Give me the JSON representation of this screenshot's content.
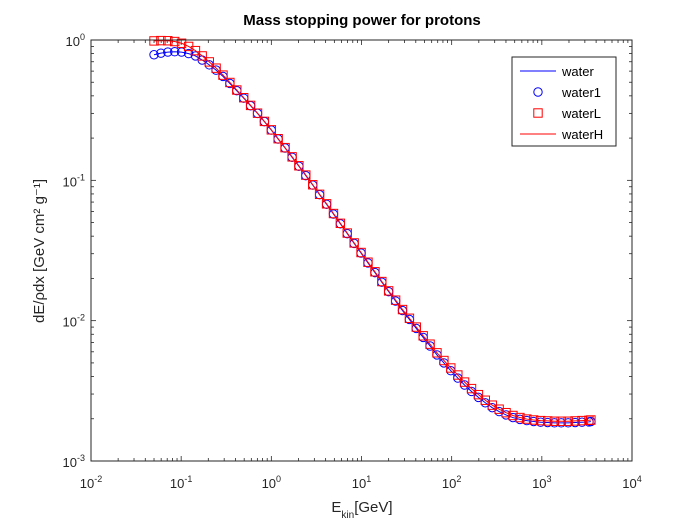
{
  "chart_data": {
    "type": "line",
    "title": "Mass stopping power for protons",
    "xlabel": {
      "main": "E",
      "sub": "kin",
      "rest": "[GeV]"
    },
    "ylabel": "dE/ρdx [GeV cm² g⁻¹]",
    "xscale": "log",
    "yscale": "log",
    "xlim": [
      0.01,
      10000
    ],
    "ylim": [
      0.001,
      1
    ],
    "x_ticks": [
      {
        "base": "10",
        "exp": "-2"
      },
      {
        "base": "10",
        "exp": "-1"
      },
      {
        "base": "10",
        "exp": "0"
      },
      {
        "base": "10",
        "exp": "1"
      },
      {
        "base": "10",
        "exp": "2"
      },
      {
        "base": "10",
        "exp": "3"
      },
      {
        "base": "10",
        "exp": "4"
      }
    ],
    "y_ticks": [
      {
        "base": "10",
        "exp": "-3"
      },
      {
        "base": "10",
        "exp": "-2"
      },
      {
        "base": "10",
        "exp": "-1"
      },
      {
        "base": "10",
        "exp": "0"
      }
    ],
    "grid": false,
    "legend_position": "top-right",
    "series": [
      {
        "name": "water",
        "style": "line",
        "color": "#0000ff",
        "x": [
          0.05,
          0.0596,
          0.0711,
          0.0848,
          0.101,
          0.121,
          0.144,
          0.171,
          0.205,
          0.244,
          0.291,
          0.347,
          0.414,
          0.494,
          0.589,
          0.703,
          0.838,
          1.0,
          1.19,
          1.42,
          1.7,
          2.02,
          2.41,
          2.88,
          3.43,
          4.1,
          4.89,
          5.83,
          6.95,
          8.29,
          9.89,
          11.8,
          14.1,
          16.8,
          20.0,
          23.9,
          28.5,
          34.0,
          40.5,
          48.3,
          57.6,
          68.7,
          82.0,
          97.8,
          117,
          139,
          166,
          198,
          236,
          282,
          336,
          401,
          478,
          571,
          681,
          812,
          969,
          1160,
          1380,
          1640,
          1960,
          2340,
          2790,
          3330,
          3500
        ],
        "y": [
          0.785,
          0.806,
          0.82,
          0.825,
          0.82,
          0.8,
          0.77,
          0.72,
          0.665,
          0.61,
          0.55,
          0.49,
          0.435,
          0.385,
          0.34,
          0.3,
          0.262,
          0.228,
          0.197,
          0.17,
          0.146,
          0.126,
          0.108,
          0.0925,
          0.079,
          0.0675,
          0.0575,
          0.049,
          0.0417,
          0.0355,
          0.0303,
          0.0258,
          0.022,
          0.0188,
          0.0161,
          0.0138,
          0.0118,
          0.0102,
          0.0088,
          0.0076,
          0.0066,
          0.0057,
          0.005,
          0.0044,
          0.0039,
          0.00348,
          0.00313,
          0.00284,
          0.0026,
          0.0024,
          0.00225,
          0.00213,
          0.00204,
          0.00198,
          0.00194,
          0.00191,
          0.00189,
          0.00188,
          0.00187,
          0.00187,
          0.00187,
          0.00188,
          0.00189,
          0.0019,
          0.00191
        ]
      },
      {
        "name": "water1",
        "style": "circle",
        "color": "#0000ff",
        "x": [
          0.05,
          0.0596,
          0.0711,
          0.0848,
          0.101,
          0.121,
          0.144,
          0.171,
          0.205,
          0.244,
          0.291,
          0.347,
          0.414,
          0.494,
          0.589,
          0.703,
          0.838,
          1.0,
          1.19,
          1.42,
          1.7,
          2.02,
          2.41,
          2.88,
          3.43,
          4.1,
          4.89,
          5.83,
          6.95,
          8.29,
          9.89,
          11.8,
          14.1,
          16.8,
          20.0,
          23.9,
          28.5,
          34.0,
          40.5,
          48.3,
          57.6,
          68.7,
          82.0,
          97.8,
          117,
          139,
          166,
          198,
          236,
          282,
          336,
          401,
          478,
          571,
          681,
          812,
          969,
          1160,
          1380,
          1640,
          1960,
          2340,
          2790,
          3330,
          3500
        ],
        "y": [
          0.785,
          0.806,
          0.82,
          0.825,
          0.82,
          0.8,
          0.77,
          0.72,
          0.665,
          0.61,
          0.55,
          0.49,
          0.435,
          0.385,
          0.34,
          0.3,
          0.262,
          0.228,
          0.197,
          0.17,
          0.146,
          0.126,
          0.108,
          0.0925,
          0.079,
          0.0675,
          0.0575,
          0.049,
          0.0417,
          0.0355,
          0.0303,
          0.0258,
          0.022,
          0.0188,
          0.0161,
          0.0138,
          0.0118,
          0.0102,
          0.0088,
          0.0076,
          0.0066,
          0.0057,
          0.005,
          0.0044,
          0.0039,
          0.00348,
          0.00313,
          0.00284,
          0.0026,
          0.0024,
          0.00225,
          0.00213,
          0.00204,
          0.00198,
          0.00194,
          0.00191,
          0.00189,
          0.00188,
          0.00187,
          0.00187,
          0.00187,
          0.00188,
          0.00189,
          0.0019,
          0.00191
        ]
      },
      {
        "name": "waterL",
        "style": "square",
        "color": "#ff0000",
        "x": [
          0.05,
          0.0596,
          0.0711,
          0.0848,
          0.101,
          0.121,
          0.144,
          0.171,
          0.205,
          0.244,
          0.291,
          0.347,
          0.414,
          0.494,
          0.589,
          0.703,
          0.838,
          1.0,
          1.19,
          1.42,
          1.7,
          2.02,
          2.41,
          2.88,
          3.43,
          4.1,
          4.89,
          5.83,
          6.95,
          8.29,
          9.89,
          11.8,
          14.1,
          16.8,
          20.0,
          23.9,
          28.5,
          34.0,
          40.5,
          48.3,
          57.6,
          68.7,
          82.0,
          97.8,
          117,
          139,
          166,
          198,
          236,
          282,
          336,
          401,
          478,
          571,
          681,
          812,
          969,
          1160,
          1380,
          1640,
          1960,
          2340,
          2790,
          3330,
          3500
        ],
        "y": [
          0.985,
          0.99,
          0.988,
          0.975,
          0.948,
          0.9,
          0.84,
          0.77,
          0.698,
          0.63,
          0.562,
          0.498,
          0.44,
          0.388,
          0.342,
          0.301,
          0.263,
          0.229,
          0.198,
          0.171,
          0.147,
          0.127,
          0.109,
          0.093,
          0.0795,
          0.068,
          0.058,
          0.0494,
          0.0421,
          0.0358,
          0.0306,
          0.0261,
          0.0223,
          0.019,
          0.0163,
          0.014,
          0.012,
          0.0104,
          0.009,
          0.0078,
          0.0068,
          0.0059,
          0.0052,
          0.0046,
          0.0041,
          0.00365,
          0.00328,
          0.00297,
          0.00271,
          0.0025,
          0.00234,
          0.00221,
          0.00211,
          0.00204,
          0.00199,
          0.00196,
          0.00194,
          0.00193,
          0.00192,
          0.00192,
          0.00192,
          0.00193,
          0.00194,
          0.00195,
          0.00196
        ]
      },
      {
        "name": "waterH",
        "style": "line",
        "color": "#ff0000",
        "x": [
          0.05,
          0.0596,
          0.0711,
          0.0848,
          0.101,
          0.121,
          0.144,
          0.171,
          0.205,
          0.244,
          0.291,
          0.347,
          0.414,
          0.494,
          0.589,
          0.703,
          0.838,
          1.0,
          1.19,
          1.42,
          1.7,
          2.02,
          2.41,
          2.88,
          3.43,
          4.1,
          4.89,
          5.83,
          6.95,
          8.29,
          9.89,
          11.8,
          14.1,
          16.8,
          20.0,
          23.9,
          28.5,
          34.0,
          40.5,
          48.3,
          57.6,
          68.7,
          82.0,
          97.8,
          117,
          139,
          166,
          198,
          236,
          282,
          336,
          401,
          478,
          571,
          681,
          812,
          969,
          1160,
          1380,
          1640,
          1960,
          2340,
          2790,
          3330,
          3500
        ],
        "y": [
          0.985,
          0.99,
          0.988,
          0.975,
          0.948,
          0.9,
          0.84,
          0.77,
          0.698,
          0.63,
          0.562,
          0.498,
          0.44,
          0.388,
          0.342,
          0.301,
          0.263,
          0.229,
          0.198,
          0.171,
          0.147,
          0.127,
          0.109,
          0.093,
          0.0795,
          0.068,
          0.058,
          0.0494,
          0.0421,
          0.0358,
          0.0306,
          0.0261,
          0.0223,
          0.019,
          0.0163,
          0.014,
          0.012,
          0.0104,
          0.009,
          0.0078,
          0.0068,
          0.0059,
          0.0052,
          0.0046,
          0.0041,
          0.00365,
          0.00328,
          0.00297,
          0.00271,
          0.0025,
          0.00234,
          0.00221,
          0.00211,
          0.00204,
          0.00199,
          0.00196,
          0.00194,
          0.00193,
          0.00192,
          0.00192,
          0.00192,
          0.00193,
          0.00194,
          0.00195,
          0.00196
        ]
      }
    ]
  }
}
